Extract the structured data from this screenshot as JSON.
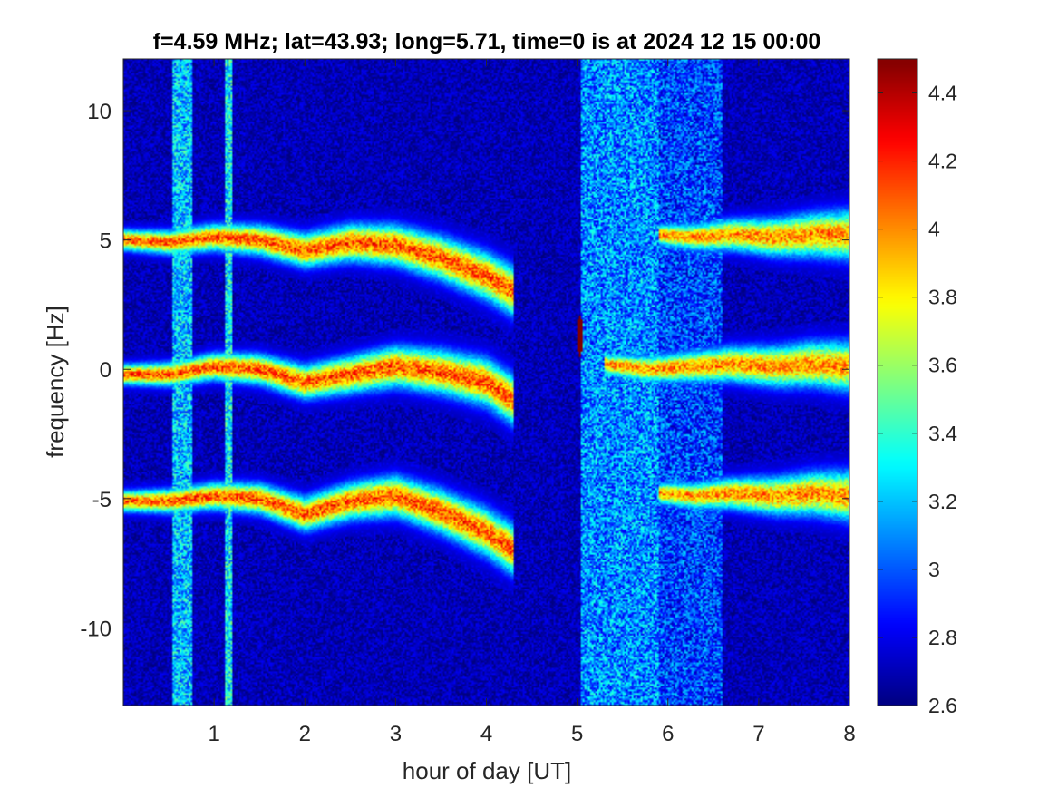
{
  "chart_data": {
    "type": "heatmap",
    "title": "f=4.59 MHz;  lat=43.93; long=5.71, time=0 is at 2024 12 15 00:00",
    "xlabel": "hour of day [UT]",
    "ylabel": "frequency [Hz]",
    "xlim": [
      0,
      8
    ],
    "ylim": [
      -13,
      12
    ],
    "x_ticks": [
      1,
      2,
      3,
      4,
      5,
      6,
      7,
      8
    ],
    "x_tick_labels": [
      "1",
      "2",
      "3",
      "4",
      "5",
      "6",
      "7",
      "8"
    ],
    "y_ticks": [
      -10,
      -5,
      0,
      5,
      10
    ],
    "y_tick_labels": [
      "-10",
      "-5",
      "0",
      "5",
      "10"
    ],
    "colormap": "jet",
    "clim": [
      2.6,
      4.5
    ],
    "colorbar_ticks": [
      2.6,
      2.8,
      3,
      3.2,
      3.4,
      3.6,
      3.8,
      4,
      4.2,
      4.4
    ],
    "colorbar_tick_labels": [
      "2.6",
      "2.8",
      "3",
      "3.2",
      "3.4",
      "3.6",
      "3.8",
      "4",
      "4.2",
      "4.4"
    ],
    "background_level": 2.7,
    "broadband_bands": [
      {
        "x0": 0.55,
        "x1": 0.75,
        "level": 3.2
      },
      {
        "x0": 1.12,
        "x1": 1.2,
        "level": 3.3
      },
      {
        "x0": 5.05,
        "x1": 5.9,
        "level": 3.1
      },
      {
        "x0": 5.9,
        "x1": 6.6,
        "level": 2.95
      }
    ],
    "traces": [
      {
        "x": [
          0,
          0.5,
          1,
          1.5,
          2,
          2.5,
          3,
          3.5,
          4,
          4.3
        ],
        "y": [
          5,
          4.9,
          5.1,
          5.0,
          4.6,
          4.9,
          4.8,
          4.3,
          3.6,
          3.0
        ],
        "level": 4.1
      },
      {
        "x": [
          0,
          0.5,
          1,
          1.5,
          2,
          2.5,
          3,
          3.5,
          4,
          4.3
        ],
        "y": [
          -0.2,
          -0.2,
          0.1,
          0,
          -0.5,
          -0.2,
          0.1,
          -0.1,
          -0.5,
          -1.2
        ],
        "level": 4.1
      },
      {
        "x": [
          0,
          0.5,
          1,
          1.5,
          2,
          2.5,
          3,
          3.5,
          4,
          4.3
        ],
        "y": [
          -5.1,
          -5.1,
          -4.9,
          -5.0,
          -5.6,
          -5.1,
          -4.9,
          -5.5,
          -6.3,
          -7.0
        ],
        "level": 4.1
      },
      {
        "x": [
          5.3,
          5.8,
          6.3,
          6.7,
          7.2,
          7.6,
          8
        ],
        "y": [
          0.2,
          0,
          0.1,
          0.2,
          0.1,
          0.2,
          0.1
        ],
        "level": 4.0
      },
      {
        "x": [
          5.9,
          6.3,
          6.7,
          7.2,
          7.6,
          8
        ],
        "y": [
          5.2,
          5.1,
          5.2,
          5.1,
          5.2,
          5.2
        ],
        "level": 4.0
      },
      {
        "x": [
          5.9,
          6.3,
          6.7,
          7.2,
          7.6,
          8
        ],
        "y": [
          -4.8,
          -4.9,
          -4.8,
          -4.9,
          -4.8,
          -4.9
        ],
        "level": 4.0
      }
    ],
    "spots": [
      {
        "x": 5.03,
        "y": 1.3,
        "level": 4.5
      }
    ]
  }
}
